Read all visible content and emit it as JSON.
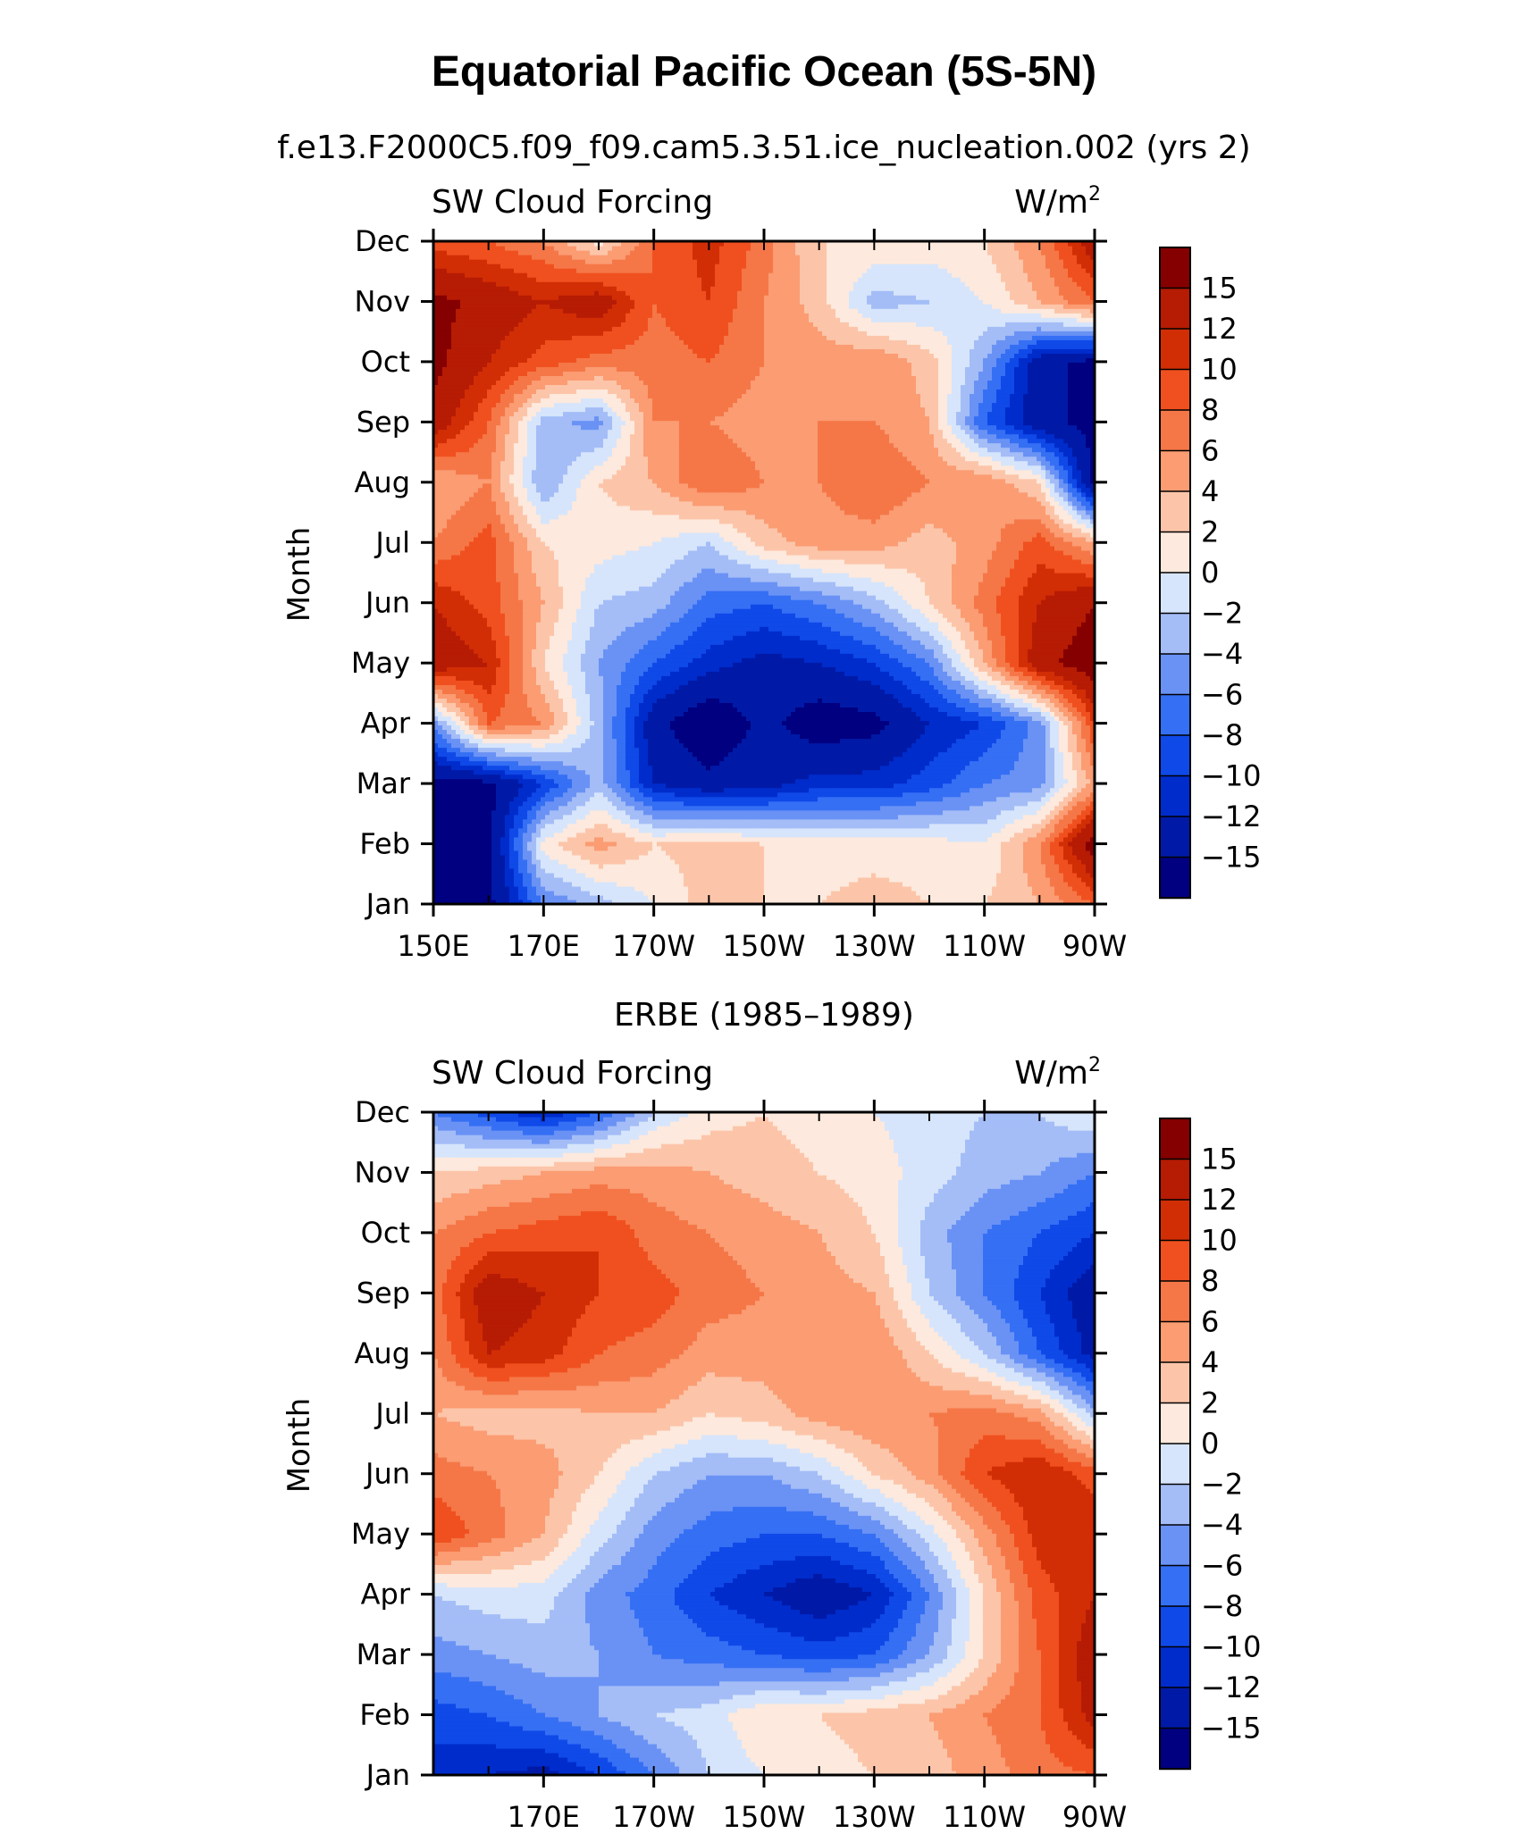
{
  "figure": {
    "title": "Equatorial Pacific Ocean (5S-5N)",
    "subtitle": "f.e13.F2000C5.f09_f09.cam5.3.51.ice_nucleation.002 (yrs 2)"
  },
  "chart_data": [
    {
      "type": "heatmap",
      "title": "f.e13.F2000C5.f09_f09.cam5.3.51.ice_nucleation.002 (yrs 2)",
      "left_label": "SW Cloud Forcing",
      "right_label": "W/m",
      "right_label_sup": "2",
      "ylabel": "Month",
      "x": [
        150,
        160,
        170,
        180,
        190,
        200,
        210,
        220,
        230,
        240,
        250,
        260,
        270
      ],
      "xlim": [
        150,
        270
      ],
      "x_tick_values": [
        150,
        170,
        190,
        210,
        230,
        250,
        270
      ],
      "x_tick_labels": [
        "150E",
        "170E",
        "170W",
        "150W",
        "130W",
        "110W",
        "90W"
      ],
      "y": [
        "Jan",
        "Feb",
        "Mar",
        "Apr",
        "May",
        "Jun",
        "Jul",
        "Aug",
        "Sep",
        "Oct",
        "Nov",
        "Dec"
      ],
      "z": [
        [
          -16,
          -16,
          -6,
          -3,
          0,
          3,
          2,
          2,
          3,
          2,
          2,
          4,
          8
        ],
        [
          -16,
          -16,
          1,
          5,
          2,
          3,
          2,
          1,
          1,
          1,
          0,
          6,
          17
        ],
        [
          -16,
          -16,
          -10,
          -3,
          -12,
          -14,
          -13,
          -11,
          -11,
          -9,
          -6,
          -5,
          5
        ],
        [
          -5,
          8,
          6,
          -3,
          -14,
          -18,
          -14,
          -17,
          -16,
          -12,
          -10,
          -5,
          10
        ],
        [
          14,
          12,
          2,
          -4,
          -8,
          -11,
          -13,
          -12,
          -10,
          -6,
          4,
          14,
          17
        ],
        [
          12,
          9,
          4,
          -2,
          -3,
          -7,
          -8,
          -6,
          -3,
          2,
          7,
          12,
          15
        ],
        [
          6,
          9,
          2,
          1,
          0,
          -2,
          3,
          5,
          5,
          3,
          5,
          9,
          4
        ],
        [
          4,
          6,
          -4,
          2,
          4,
          8,
          6,
          6,
          8,
          6,
          6,
          2,
          -16
        ],
        [
          14,
          8,
          -3,
          -5,
          6,
          6,
          5,
          6,
          6,
          4,
          -8,
          -14,
          -16
        ],
        [
          16,
          12,
          9,
          7,
          7,
          8,
          6,
          5,
          6,
          3,
          -4,
          -14,
          -16
        ],
        [
          16,
          14,
          12,
          14,
          8,
          10,
          6,
          3,
          -3,
          -2,
          0,
          4,
          8
        ],
        [
          9,
          8,
          6,
          1,
          8,
          11,
          7,
          2,
          2,
          1,
          2,
          6,
          14
        ]
      ],
      "colorbar": {
        "ticks": [
          "15",
          "12",
          "10",
          "8",
          "6",
          "4",
          "2",
          "0",
          "−2",
          "−4",
          "−6",
          "−8",
          "−10",
          "−12",
          "−15"
        ],
        "levels": [
          -15,
          -12,
          -10,
          -8,
          -6,
          -4,
          -2,
          0,
          2,
          4,
          6,
          8,
          10,
          12,
          15
        ],
        "colors": [
          "#000080",
          "#001aa7",
          "#002ccc",
          "#0f49e8",
          "#356ff4",
          "#6a92f5",
          "#a4bdf7",
          "#d6e5fb",
          "#fde9dd",
          "#fcc5a9",
          "#fb9c73",
          "#f57747",
          "#f0501f",
          "#d22e06",
          "#b61b04",
          "#850000"
        ]
      }
    },
    {
      "type": "heatmap",
      "title": "ERBE (1985–1989)",
      "left_label": "SW Cloud Forcing",
      "right_label": "W/m",
      "right_label_sup": "2",
      "ylabel": "Month",
      "x": [
        150,
        160,
        170,
        180,
        190,
        200,
        210,
        220,
        230,
        240,
        250,
        260,
        270
      ],
      "xlim": [
        150,
        270
      ],
      "x_tick_values": [
        170,
        190,
        210,
        230,
        250,
        270
      ],
      "x_tick_labels": [
        "170E",
        "170W",
        "150W",
        "130W",
        "110W",
        "90W"
      ],
      "y": [
        "Jan",
        "Feb",
        "Mar",
        "Apr",
        "May",
        "Jun",
        "Jul",
        "Aug",
        "Sep",
        "Oct",
        "Nov",
        "Dec"
      ],
      "z": [
        [
          -11,
          -12,
          -13,
          -10,
          -6,
          -2,
          0,
          1,
          2,
          3,
          5,
          7,
          8
        ],
        [
          -9,
          -8,
          -6,
          -4,
          -2,
          -1,
          2,
          2,
          3,
          4,
          6,
          8,
          13
        ],
        [
          -5,
          -4,
          -3,
          -4,
          -6,
          -7,
          -8,
          -9,
          -8,
          -4,
          2,
          8,
          14
        ],
        [
          -2,
          -1,
          -1,
          -5,
          -7,
          -10,
          -12,
          -14,
          -12,
          -6,
          2,
          9,
          12
        ],
        [
          10,
          7,
          4,
          -1,
          -5,
          -7,
          -8,
          -8,
          -6,
          -1,
          5,
          11,
          12
        ],
        [
          7,
          6,
          5,
          2,
          -2,
          -4,
          -4,
          -2,
          2,
          5,
          10,
          12,
          9
        ],
        [
          4,
          3,
          3,
          4,
          4,
          2,
          3,
          5,
          6,
          6,
          7,
          5,
          -3
        ],
        [
          6,
          12,
          11,
          8,
          7,
          5,
          5,
          6,
          6,
          2,
          -2,
          -8,
          -13
        ],
        [
          7,
          14,
          12,
          10,
          9,
          7,
          6,
          5,
          4,
          -2,
          -6,
          -10,
          -14
        ],
        [
          6,
          8,
          9,
          10,
          7,
          6,
          5,
          4,
          2,
          -3,
          -6,
          -8,
          -10
        ],
        [
          2,
          3,
          4,
          5,
          5,
          4,
          3,
          2,
          1,
          -1,
          -3,
          -4,
          -6
        ],
        [
          -6,
          -9,
          -12,
          -8,
          -2,
          1,
          2,
          1,
          0,
          -1,
          -2,
          -2,
          0
        ]
      ],
      "colorbar": {
        "ticks": [
          "15",
          "12",
          "10",
          "8",
          "6",
          "4",
          "2",
          "0",
          "−2",
          "−4",
          "−6",
          "−8",
          "−10",
          "−12",
          "−15"
        ],
        "levels": [
          -15,
          -12,
          -10,
          -8,
          -6,
          -4,
          -2,
          0,
          2,
          4,
          6,
          8,
          10,
          12,
          15
        ],
        "colors": [
          "#000080",
          "#001aa7",
          "#002ccc",
          "#0f49e8",
          "#356ff4",
          "#6a92f5",
          "#a4bdf7",
          "#d6e5fb",
          "#fde9dd",
          "#fcc5a9",
          "#fb9c73",
          "#f57747",
          "#f0501f",
          "#d22e06",
          "#b61b04",
          "#850000"
        ]
      }
    }
  ]
}
